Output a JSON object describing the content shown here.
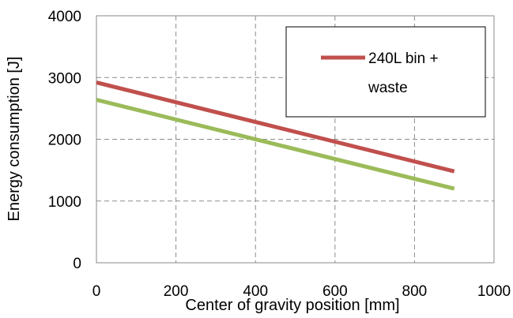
{
  "chart_data": {
    "type": "line",
    "xlabel": "Center of gravity position [mm]",
    "ylabel": "Energy consumption [J]",
    "xlim": [
      0,
      1000
    ],
    "ylim": [
      0,
      4000
    ],
    "xticks": [
      "0",
      "200",
      "400",
      "600",
      "800",
      "1000"
    ],
    "yticks": [
      "0",
      "1000",
      "2000",
      "3000",
      "4000"
    ],
    "grid": "dashed",
    "legend_position": "top-right",
    "series": [
      {
        "name": "240L bin + waste",
        "color": "#c0504d",
        "x": [
          0,
          900
        ],
        "y": [
          2920,
          1480
        ]
      },
      {
        "color": "#9bbb59",
        "x": [
          0,
          900
        ],
        "y": [
          2640,
          1200
        ]
      }
    ],
    "legend": {
      "line1": "240L bin +",
      "line2": "waste"
    }
  }
}
